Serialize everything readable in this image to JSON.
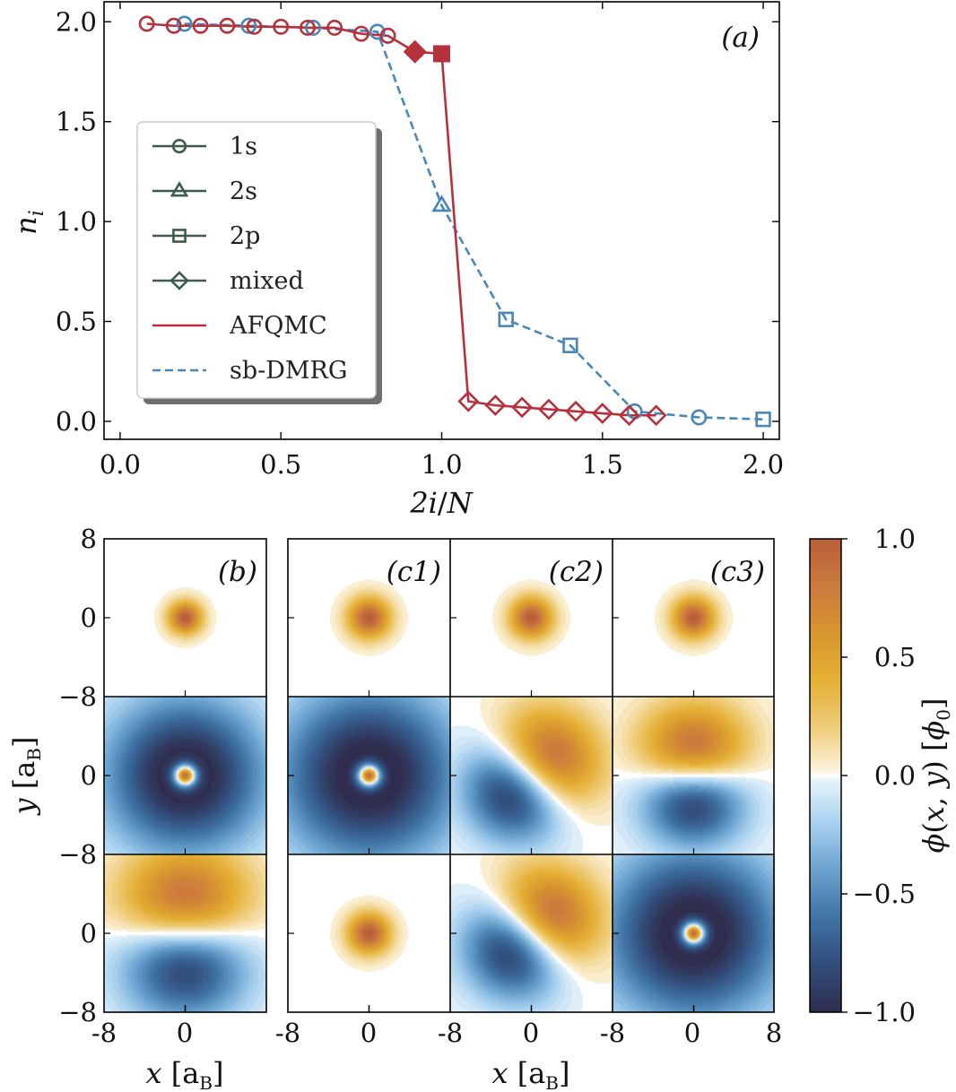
{
  "chart_data": [
    {
      "id": "a",
      "type": "line",
      "panel_label": "(a)",
      "xlabel": "2i/N",
      "ylabel": "n_i",
      "xlim": [
        -0.05,
        2.05
      ],
      "ylim": [
        -0.09,
        2.1
      ],
      "xticks": [
        0.0,
        0.5,
        1.0,
        1.5,
        2.0
      ],
      "xtick_labels": [
        "0.0",
        "0.5",
        "1.0",
        "1.5",
        "2.0"
      ],
      "yticks": [
        0.0,
        0.5,
        1.0,
        1.5,
        2.0
      ],
      "ytick_labels": [
        "0.0",
        "0.5",
        "1.0",
        "1.5",
        "2.0"
      ],
      "legend_position": "center-left",
      "legend": [
        {
          "label": "1s",
          "kind": "marker",
          "marker": "circle"
        },
        {
          "label": "2s",
          "kind": "marker",
          "marker": "triangle"
        },
        {
          "label": "2p",
          "kind": "marker",
          "marker": "square"
        },
        {
          "label": "mixed",
          "kind": "marker",
          "marker": "diamond"
        },
        {
          "label": "AFQMC",
          "kind": "line",
          "style": "solid",
          "color": "#b5323d"
        },
        {
          "label": "sb-DMRG",
          "kind": "line",
          "style": "dashed",
          "color": "#4a86b8"
        }
      ],
      "colors": {
        "afqmc": "#b5323d",
        "dmrg": "#4a86b8",
        "legend_marker": "#3d5a4c"
      },
      "series": [
        {
          "name": "AFQMC",
          "style": "solid",
          "points": [
            {
              "x": 0.083,
              "y": 1.99,
              "m": "circle"
            },
            {
              "x": 0.167,
              "y": 1.98,
              "m": "circle"
            },
            {
              "x": 0.25,
              "y": 1.98,
              "m": "circle"
            },
            {
              "x": 0.333,
              "y": 1.98,
              "m": "circle"
            },
            {
              "x": 0.417,
              "y": 1.975,
              "m": "circle"
            },
            {
              "x": 0.5,
              "y": 1.975,
              "m": "circle"
            },
            {
              "x": 0.583,
              "y": 1.97,
              "m": "circle"
            },
            {
              "x": 0.667,
              "y": 1.97,
              "m": "circle"
            },
            {
              "x": 0.75,
              "y": 1.94,
              "m": "circle"
            },
            {
              "x": 0.833,
              "y": 1.93,
              "m": "circle"
            },
            {
              "x": 0.917,
              "y": 1.85,
              "m": "diamond",
              "filled": true
            },
            {
              "x": 1.0,
              "y": 1.84,
              "m": "square",
              "filled": true
            },
            {
              "x": 1.083,
              "y": 0.1,
              "m": "diamond"
            },
            {
              "x": 1.167,
              "y": 0.08,
              "m": "diamond"
            },
            {
              "x": 1.25,
              "y": 0.07,
              "m": "diamond"
            },
            {
              "x": 1.333,
              "y": 0.06,
              "m": "diamond"
            },
            {
              "x": 1.417,
              "y": 0.05,
              "m": "diamond"
            },
            {
              "x": 1.5,
              "y": 0.04,
              "m": "diamond"
            },
            {
              "x": 1.583,
              "y": 0.03,
              "m": "diamond"
            },
            {
              "x": 1.667,
              "y": 0.03,
              "m": "diamond"
            }
          ]
        },
        {
          "name": "sb-DMRG",
          "style": "dashed",
          "points": [
            {
              "x": 0.2,
              "y": 1.99,
              "m": "circle"
            },
            {
              "x": 0.4,
              "y": 1.98,
              "m": "circle"
            },
            {
              "x": 0.6,
              "y": 1.97,
              "m": "circle"
            },
            {
              "x": 0.8,
              "y": 1.95,
              "m": "circle"
            },
            {
              "x": 1.0,
              "y": 1.08,
              "m": "triangle"
            },
            {
              "x": 1.2,
              "y": 0.51,
              "m": "square"
            },
            {
              "x": 1.4,
              "y": 0.38,
              "m": "square"
            },
            {
              "x": 1.6,
              "y": 0.05,
              "m": "circle"
            },
            {
              "x": 1.8,
              "y": 0.02,
              "m": "circle"
            },
            {
              "x": 2.0,
              "y": 0.01,
              "m": "square"
            }
          ]
        }
      ]
    },
    {
      "id": "b-c",
      "type": "heatmap",
      "description_kind": "orbital contour maps",
      "xlabel": "x [a_B]",
      "ylabel": "y [a_B]",
      "xlim": [
        -8,
        8
      ],
      "ylim": [
        -8,
        8
      ],
      "xtick_labels": [
        "-8",
        "0",
        "8"
      ],
      "ytick_labels": [
        "8",
        "0",
        "-8"
      ],
      "columns": [
        {
          "label": "(b)",
          "rows": [
            {
              "type": "s",
              "sign": 1,
              "width": 1.6
            },
            {
              "type": "ring",
              "sign": -1,
              "width": 7.5
            },
            {
              "type": "p",
              "angle": 90,
              "width": 6
            }
          ]
        },
        {
          "label": "(c1)",
          "rows": [
            {
              "type": "s",
              "sign": 1,
              "width": 2.0
            },
            {
              "type": "ring",
              "sign": -1,
              "width": 8.5
            },
            {
              "type": "s",
              "sign": 1,
              "width": 2.0
            }
          ]
        },
        {
          "label": "(c2)",
          "rows": [
            {
              "type": "s",
              "sign": 1,
              "width": 2.0
            },
            {
              "type": "p",
              "angle": 45,
              "width": 5
            },
            {
              "type": "p",
              "angle": 45,
              "width": 5
            }
          ]
        },
        {
          "label": "(c3)",
          "rows": [
            {
              "type": "s",
              "sign": 1,
              "width": 2.0
            },
            {
              "type": "p",
              "angle": 90,
              "width": 5
            },
            {
              "type": "ring",
              "sign": -1,
              "width": 8.5
            }
          ]
        }
      ],
      "colorbar": {
        "label": "phi(x, y) [phi_0]",
        "range": [
          -1.0,
          1.0
        ],
        "ticks": [
          1.0,
          0.5,
          0.0,
          -0.5,
          -1.0
        ],
        "tick_labels": [
          "1.0",
          "0.5",
          "0.0",
          "−0.5",
          "−1.0"
        ],
        "stops": [
          {
            "v": -1.0,
            "c": "#2f2d4e"
          },
          {
            "v": -0.8,
            "c": "#324d7a"
          },
          {
            "v": -0.6,
            "c": "#3f74a5"
          },
          {
            "v": -0.4,
            "c": "#6aa2cf"
          },
          {
            "v": -0.2,
            "c": "#a9d1ef"
          },
          {
            "v": -0.02,
            "c": "#e6f3fb"
          },
          {
            "v": 0.0,
            "c": "#ffffff"
          },
          {
            "v": 0.02,
            "c": "#fbf2da"
          },
          {
            "v": 0.2,
            "c": "#efcd7c"
          },
          {
            "v": 0.4,
            "c": "#e5b035"
          },
          {
            "v": 0.6,
            "c": "#d8962f"
          },
          {
            "v": 0.8,
            "c": "#cc7a3e"
          },
          {
            "v": 1.0,
            "c": "#b85f3a"
          }
        ]
      }
    }
  ]
}
